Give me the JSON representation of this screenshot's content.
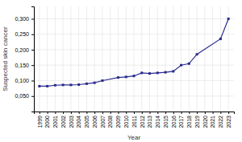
{
  "chart_data": {
    "type": "line",
    "xlabel": "Year",
    "ylabel": "Suspected skin cancer",
    "color": "#2b2b8f",
    "marker": "square",
    "grid": true,
    "x": [
      1999,
      2000,
      2001,
      2002,
      2003,
      2004,
      2005,
      2006,
      2007,
      2009,
      2010,
      2011,
      2012,
      2013,
      2014,
      2015,
      2016,
      2017,
      2018,
      2019,
      2022,
      2023
    ],
    "values": [
      0.082,
      0.082,
      0.085,
      0.086,
      0.086,
      0.087,
      0.09,
      0.093,
      0.1,
      0.11,
      0.112,
      0.115,
      0.125,
      0.123,
      0.125,
      0.127,
      0.13,
      0.15,
      0.155,
      0.185,
      0.235,
      0.3
    ],
    "xlim": [
      1998.3,
      2023.7
    ],
    "xticks": [
      1999,
      2000,
      2001,
      2002,
      2003,
      2004,
      2005,
      2006,
      2007,
      2008,
      2009,
      2010,
      2011,
      2012,
      2013,
      2014,
      2015,
      2016,
      2017,
      2018,
      2019,
      2020,
      2021,
      2022,
      2023
    ],
    "ylim": [
      0,
      0.34
    ],
    "yticks": [
      {
        "value": 0.05,
        "label": "0,050"
      },
      {
        "value": 0.1,
        "label": "0,100"
      },
      {
        "value": 0.15,
        "label": "0,150"
      },
      {
        "value": 0.2,
        "label": "0,200"
      },
      {
        "value": 0.25,
        "label": "0,250"
      },
      {
        "value": 0.3,
        "label": "0,300"
      }
    ]
  }
}
